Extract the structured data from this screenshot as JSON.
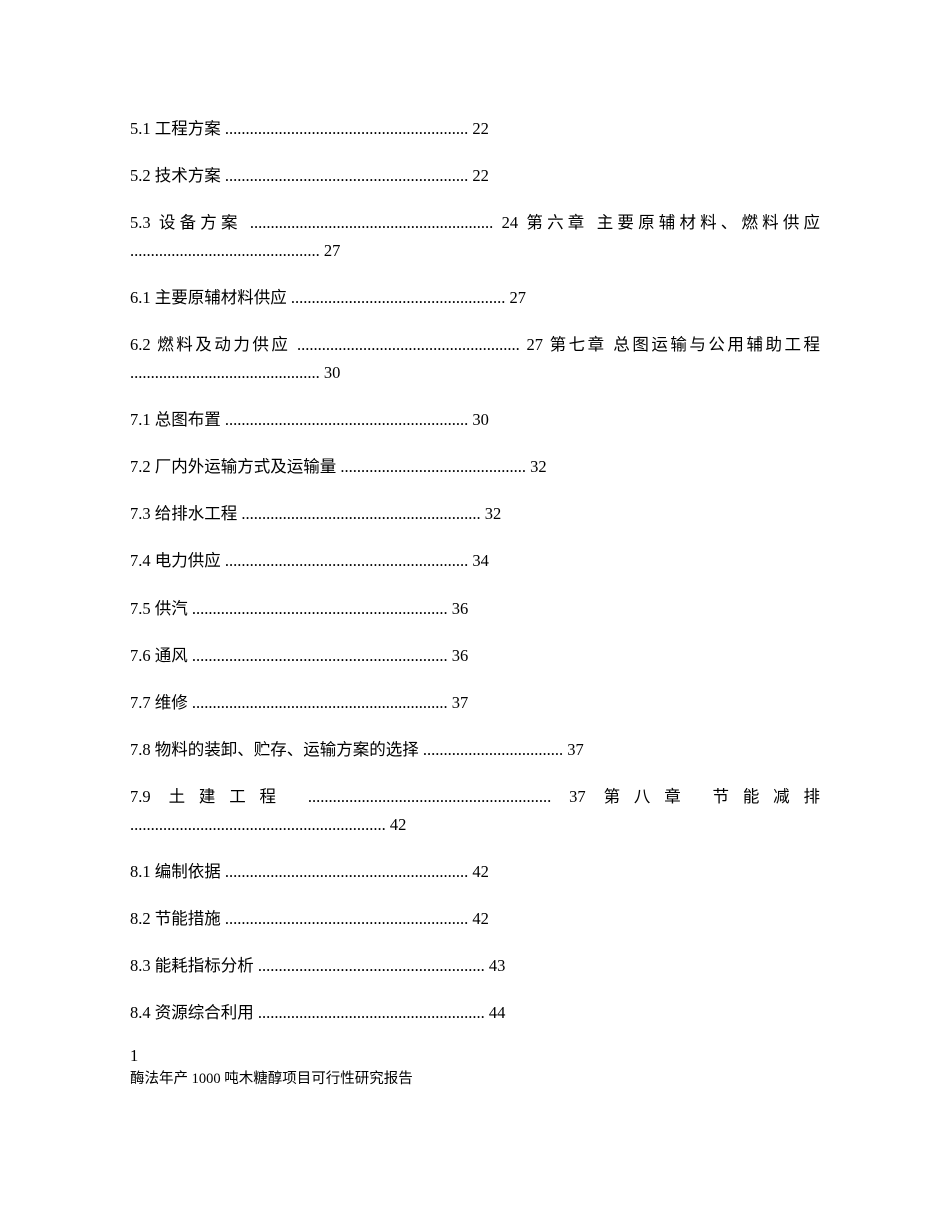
{
  "toc": {
    "lines": [
      "5.1 工程方案 ........................................................... 22",
      "5.2 技术方案 ........................................................... 22",
      "5.3 设备方案 ........................................................... 24 第六章 主要原辅材料、燃料供应 .............................................. 27",
      "6.1 主要原辅材料供应 .................................................... 27",
      "6.2 燃料及动力供应 ...................................................... 27 第七章 总图运输与公用辅助工程 .............................................. 30",
      "7.1 总图布置 ........................................................... 30",
      "7.2 厂内外运输方式及运输量 ............................................. 32",
      "7.3 给排水工程 .......................................................... 32",
      "7.4 电力供应 ........................................................... 34",
      "7.5 供汽 .............................................................. 36",
      "7.6 通风 .............................................................. 36",
      "7.7 维修 .............................................................. 37",
      "7.8 物料的装卸、贮存、运输方案的选择 .................................. 37",
      "7.9 土建工程 ........................................................... 37 第八章 节能减排 .............................................................. 42",
      "8.1 编制依据 ........................................................... 42",
      "8.2 节能措施 ........................................................... 42",
      "8.3 能耗指标分析 ....................................................... 43",
      "8.4 资源综合利用 ....................................................... 44"
    ]
  },
  "page_number": "1",
  "footer_title": "酶法年产 1000 吨木糖醇项目可行性研究报告"
}
